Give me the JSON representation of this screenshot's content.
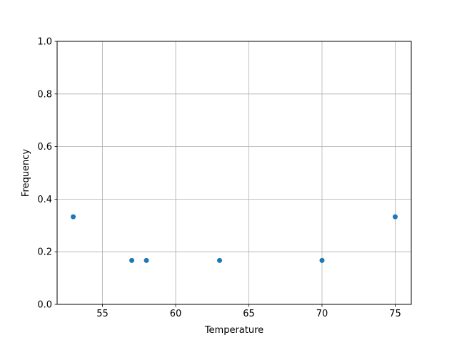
{
  "chart_data": {
    "type": "scatter",
    "title": "",
    "xlabel": "Temperature",
    "ylabel": "Frequency",
    "xlim": [
      51.9,
      76.1
    ],
    "ylim": [
      0,
      1
    ],
    "x_ticks": [
      55,
      60,
      65,
      70,
      75
    ],
    "x_tick_labels": [
      "55",
      "60",
      "65",
      "70",
      "75"
    ],
    "y_ticks": [
      0,
      0.2,
      0.4,
      0.6,
      0.8,
      1.0
    ],
    "y_tick_labels": [
      "0.0",
      "0.2",
      "0.4",
      "0.6",
      "0.8",
      "1.0"
    ],
    "grid": true,
    "color": "#1f77b4",
    "points": [
      {
        "x": 53,
        "y": 0.333
      },
      {
        "x": 57,
        "y": 0.167
      },
      {
        "x": 58,
        "y": 0.167
      },
      {
        "x": 63,
        "y": 0.167
      },
      {
        "x": 70,
        "y": 0.167
      },
      {
        "x": 75,
        "y": 0.333
      }
    ]
  }
}
